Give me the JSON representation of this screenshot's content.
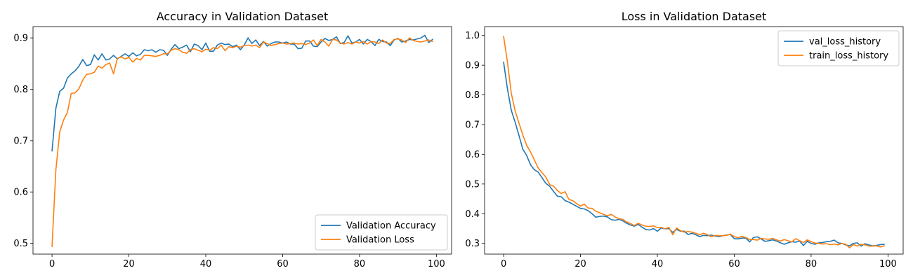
{
  "chart_data": [
    {
      "type": "line",
      "title": "Accuracy in Validation Dataset",
      "xlim": [
        -4.95,
        103.95
      ],
      "ylim": [
        0.479,
        0.922
      ],
      "xticks": [
        0,
        20,
        40,
        60,
        80,
        100
      ],
      "yticks": [
        0.5,
        0.6,
        0.7,
        0.8,
        0.9
      ],
      "legend": "lower-right",
      "series": [
        {
          "name": "Validation Accuracy",
          "color": "#1f77b4",
          "x": [
            0,
            1,
            2,
            3,
            4,
            5,
            6,
            7,
            8,
            9,
            10,
            11,
            12,
            13,
            14,
            15,
            16,
            17,
            18,
            19,
            20,
            21,
            22,
            23,
            24,
            25,
            26,
            27,
            28,
            29,
            30,
            31,
            32,
            33,
            34,
            35,
            36,
            37,
            38,
            39,
            40,
            41,
            42,
            43,
            44,
            45,
            46,
            47,
            48,
            49,
            50,
            51,
            52,
            53,
            54,
            55,
            56,
            57,
            58,
            59,
            60,
            61,
            62,
            63,
            64,
            65,
            66,
            67,
            68,
            69,
            70,
            71,
            72,
            73,
            74,
            75,
            76,
            77,
            78,
            79,
            80,
            81,
            82,
            83,
            84,
            85,
            86,
            87,
            88,
            89,
            90,
            91,
            92,
            93,
            94,
            95,
            96,
            97,
            98,
            99
          ],
          "values": [
            0.68,
            0.763,
            0.796,
            0.802,
            0.822,
            0.83,
            0.836,
            0.845,
            0.858,
            0.846,
            0.848,
            0.867,
            0.857,
            0.869,
            0.857,
            0.859,
            0.866,
            0.859,
            0.864,
            0.869,
            0.864,
            0.871,
            0.865,
            0.868,
            0.877,
            0.875,
            0.877,
            0.872,
            0.877,
            0.876,
            0.866,
            0.878,
            0.887,
            0.879,
            0.882,
            0.886,
            0.873,
            0.888,
            0.885,
            0.877,
            0.89,
            0.874,
            0.874,
            0.886,
            0.89,
            0.887,
            0.888,
            0.883,
            0.886,
            0.877,
            0.886,
            0.9,
            0.889,
            0.896,
            0.885,
            0.893,
            0.884,
            0.889,
            0.892,
            0.892,
            0.89,
            0.892,
            0.888,
            0.888,
            0.879,
            0.88,
            0.894,
            0.894,
            0.884,
            0.883,
            0.892,
            0.899,
            0.895,
            0.897,
            0.902,
            0.889,
            0.891,
            0.904,
            0.89,
            0.892,
            0.897,
            0.888,
            0.897,
            0.893,
            0.885,
            0.897,
            0.893,
            0.892,
            0.885,
            0.896,
            0.899,
            0.892,
            0.894,
            0.897,
            0.896,
            0.898,
            0.9,
            0.905,
            0.891,
            0.897
          ]
        },
        {
          "name": "Validation Loss",
          "color": "#ff7f0e",
          "x": [
            0,
            1,
            2,
            3,
            4,
            5,
            6,
            7,
            8,
            9,
            10,
            11,
            12,
            13,
            14,
            15,
            16,
            17,
            18,
            19,
            20,
            21,
            22,
            23,
            24,
            25,
            26,
            27,
            28,
            29,
            30,
            31,
            32,
            33,
            34,
            35,
            36,
            37,
            38,
            39,
            40,
            41,
            42,
            43,
            44,
            45,
            46,
            47,
            48,
            49,
            50,
            51,
            52,
            53,
            54,
            55,
            56,
            57,
            58,
            59,
            60,
            61,
            62,
            63,
            64,
            65,
            66,
            67,
            68,
            69,
            70,
            71,
            72,
            73,
            74,
            75,
            76,
            77,
            78,
            79,
            80,
            81,
            82,
            83,
            84,
            85,
            86,
            87,
            88,
            89,
            90,
            91,
            92,
            93,
            94,
            95,
            96,
            97,
            98,
            99
          ],
          "values": [
            0.494,
            0.643,
            0.717,
            0.74,
            0.755,
            0.792,
            0.793,
            0.801,
            0.818,
            0.829,
            0.83,
            0.833,
            0.845,
            0.841,
            0.848,
            0.851,
            0.83,
            0.86,
            0.863,
            0.859,
            0.862,
            0.853,
            0.86,
            0.857,
            0.866,
            0.866,
            0.865,
            0.864,
            0.866,
            0.869,
            0.869,
            0.876,
            0.879,
            0.877,
            0.872,
            0.87,
            0.877,
            0.879,
            0.876,
            0.873,
            0.878,
            0.876,
            0.881,
            0.879,
            0.886,
            0.875,
            0.883,
            0.881,
            0.884,
            0.882,
            0.885,
            0.886,
            0.884,
            0.886,
            0.881,
            0.892,
            0.889,
            0.885,
            0.887,
            0.889,
            0.89,
            0.888,
            0.889,
            0.89,
            0.888,
            0.889,
            0.887,
            0.89,
            0.896,
            0.885,
            0.897,
            0.892,
            0.884,
            0.897,
            0.896,
            0.89,
            0.888,
            0.891,
            0.888,
            0.892,
            0.89,
            0.893,
            0.888,
            0.893,
            0.892,
            0.889,
            0.896,
            0.89,
            0.889,
            0.897,
            0.898,
            0.896,
            0.891,
            0.9,
            0.895,
            0.893,
            0.892,
            0.894,
            0.896,
            0.893
          ]
        }
      ]
    },
    {
      "type": "line",
      "title": "Loss in Validation Dataset",
      "xlim": [
        -4.95,
        103.95
      ],
      "ylim": [
        0.264,
        1.03
      ],
      "xticks": [
        0,
        20,
        40,
        60,
        80,
        100
      ],
      "yticks": [
        0.3,
        0.4,
        0.5,
        0.6,
        0.7,
        0.8,
        0.9,
        1.0
      ],
      "legend": "upper-right",
      "series": [
        {
          "name": "val_loss_history",
          "color": "#1f77b4",
          "x": [
            0,
            1,
            2,
            3,
            4,
            5,
            6,
            7,
            8,
            9,
            10,
            11,
            12,
            13,
            14,
            15,
            16,
            17,
            18,
            19,
            20,
            21,
            22,
            23,
            24,
            25,
            26,
            27,
            28,
            29,
            30,
            31,
            32,
            33,
            34,
            35,
            36,
            37,
            38,
            39,
            40,
            41,
            42,
            43,
            44,
            45,
            46,
            47,
            48,
            49,
            50,
            51,
            52,
            53,
            54,
            55,
            56,
            57,
            58,
            59,
            60,
            61,
            62,
            63,
            64,
            65,
            66,
            67,
            68,
            69,
            70,
            71,
            72,
            73,
            74,
            75,
            76,
            77,
            78,
            79,
            80,
            81,
            82,
            83,
            84,
            85,
            86,
            87,
            88,
            89,
            90,
            91,
            92,
            93,
            94,
            95,
            96,
            97,
            98,
            99
          ],
          "values": [
            0.91,
            0.82,
            0.748,
            0.708,
            0.663,
            0.617,
            0.596,
            0.565,
            0.548,
            0.54,
            0.521,
            0.502,
            0.492,
            0.475,
            0.459,
            0.457,
            0.444,
            0.439,
            0.432,
            0.425,
            0.418,
            0.416,
            0.41,
            0.4,
            0.388,
            0.391,
            0.392,
            0.389,
            0.38,
            0.378,
            0.381,
            0.376,
            0.368,
            0.362,
            0.358,
            0.364,
            0.355,
            0.347,
            0.345,
            0.35,
            0.341,
            0.352,
            0.349,
            0.35,
            0.337,
            0.347,
            0.341,
            0.341,
            0.33,
            0.334,
            0.329,
            0.323,
            0.327,
            0.326,
            0.328,
            0.325,
            0.323,
            0.326,
            0.328,
            0.33,
            0.316,
            0.315,
            0.318,
            0.318,
            0.305,
            0.32,
            0.322,
            0.315,
            0.307,
            0.309,
            0.312,
            0.308,
            0.302,
            0.297,
            0.302,
            0.306,
            0.304,
            0.308,
            0.293,
            0.307,
            0.3,
            0.297,
            0.302,
            0.303,
            0.306,
            0.307,
            0.311,
            0.302,
            0.3,
            0.295,
            0.292,
            0.3,
            0.302,
            0.291,
            0.299,
            0.295,
            0.292,
            0.293,
            0.296,
            0.297
          ]
        },
        {
          "name": "train_loss_history",
          "color": "#ff7f0e",
          "x": [
            0,
            1,
            2,
            3,
            4,
            5,
            6,
            7,
            8,
            9,
            10,
            11,
            12,
            13,
            14,
            15,
            16,
            17,
            18,
            19,
            20,
            21,
            22,
            23,
            24,
            25,
            26,
            27,
            28,
            29,
            30,
            31,
            32,
            33,
            34,
            35,
            36,
            37,
            38,
            39,
            40,
            41,
            42,
            43,
            44,
            45,
            46,
            47,
            48,
            49,
            50,
            51,
            52,
            53,
            54,
            55,
            56,
            57,
            58,
            59,
            60,
            61,
            62,
            63,
            64,
            65,
            66,
            67,
            68,
            69,
            70,
            71,
            72,
            73,
            74,
            75,
            76,
            77,
            78,
            79,
            80,
            81,
            82,
            83,
            84,
            85,
            86,
            87,
            88,
            89,
            90,
            91,
            92,
            93,
            94,
            95,
            96,
            97,
            98,
            99
          ],
          "values": [
            0.997,
            0.91,
            0.805,
            0.746,
            0.705,
            0.665,
            0.63,
            0.608,
            0.581,
            0.554,
            0.538,
            0.523,
            0.498,
            0.493,
            0.478,
            0.468,
            0.474,
            0.448,
            0.444,
            0.434,
            0.426,
            0.432,
            0.419,
            0.418,
            0.408,
            0.403,
            0.398,
            0.393,
            0.398,
            0.389,
            0.383,
            0.381,
            0.372,
            0.367,
            0.36,
            0.368,
            0.362,
            0.358,
            0.357,
            0.359,
            0.353,
            0.354,
            0.349,
            0.354,
            0.329,
            0.352,
            0.343,
            0.338,
            0.34,
            0.338,
            0.334,
            0.329,
            0.334,
            0.33,
            0.322,
            0.327,
            0.326,
            0.326,
            0.327,
            0.331,
            0.323,
            0.319,
            0.324,
            0.32,
            0.313,
            0.313,
            0.311,
            0.317,
            0.315,
            0.314,
            0.317,
            0.312,
            0.308,
            0.313,
            0.309,
            0.305,
            0.316,
            0.309,
            0.303,
            0.312,
            0.306,
            0.301,
            0.3,
            0.298,
            0.299,
            0.296,
            0.298,
            0.295,
            0.3,
            0.297,
            0.285,
            0.296,
            0.291,
            0.297,
            0.295,
            0.291,
            0.291,
            0.292,
            0.288,
            0.292
          ]
        }
      ]
    }
  ]
}
